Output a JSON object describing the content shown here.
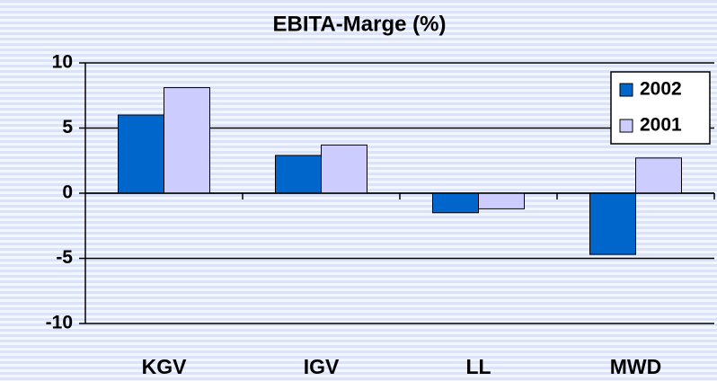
{
  "chart_data": {
    "type": "bar",
    "title": "EBITA-Marge (%)",
    "categories": [
      "KGV",
      "IGV",
      "LL",
      "MWD"
    ],
    "series": [
      {
        "name": "2002",
        "color": "#0066cc",
        "values": [
          6,
          2.9,
          -1.5,
          -4.7
        ]
      },
      {
        "name": "2001",
        "color": "#ccccff",
        "values": [
          8.1,
          3.7,
          -1.2,
          2.7
        ]
      }
    ],
    "ylim": [
      -10,
      10
    ],
    "yticks": [
      -10,
      -5,
      0,
      5,
      10
    ],
    "grid": true,
    "legend": "top-right"
  }
}
